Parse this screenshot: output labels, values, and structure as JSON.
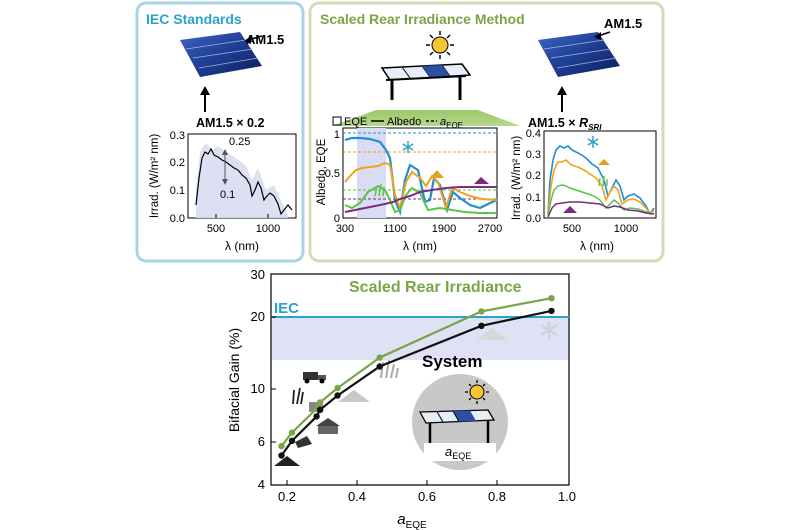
{
  "colors": {
    "iec_blue": "#2aa3c8",
    "sri_green": "#7aa546",
    "panel_iec_border": "#a9d3e2",
    "panel_sri_border": "#d4dbb8",
    "band_lavender": "#d9dcf2",
    "system_black": "#111111",
    "eqe_blue": "#1f8fd0",
    "albedo_orange": "#f0a21d",
    "albedo_green": "#5cc24a",
    "albedo_purple": "#7b2a7e"
  },
  "icons": [
    "solar-cell-icon",
    "sun-icon",
    "bifacial-array-icon",
    "snowflake-icon",
    "sand-pile-icon",
    "purple-soil-icon",
    "grass-icon",
    "truck-icon",
    "concrete-icon",
    "gravel-icon",
    "roof-icon",
    "dark-soil-icon"
  ],
  "panel_iec": {
    "title": "IEC Standards",
    "front_label": "AM1.5",
    "rear_label": "AM1.5 × 0.2",
    "ylabel": "Irrad. (W/m² nm)",
    "xlabel": "λ (nm)",
    "x_ticks": [
      "500",
      "1000"
    ],
    "y_ticks": [
      "0.0",
      "0.1",
      "0.2",
      "0.3"
    ],
    "annot_high": "0.25",
    "annot_low": "0.1"
  },
  "panel_sri": {
    "title": "Scaled Rear Irradiance Method",
    "legend_eqe": "EQE",
    "legend_albedo": "Albedo",
    "legend_a": "a",
    "legend_a_sub": "EQE",
    "ylabel": "Albedo, EQE",
    "xlabel": "λ (nm)",
    "x_ticks": [
      "300",
      "1100",
      "1900",
      "2700"
    ],
    "y_ticks": [
      "0",
      "0.5",
      "1"
    ]
  },
  "panel_rsri": {
    "front_label": "AM1.5",
    "rear_label_prefix": "AM1.5 × ",
    "rear_label_r": "R",
    "rear_label_sub": "SRI",
    "ylabel": "Irrad. (W/m² nm)",
    "xlabel": "λ (nm)",
    "x_ticks": [
      "500",
      "1000"
    ],
    "y_ticks": [
      "0.0",
      "0.1",
      "0.2",
      "0.3",
      "0.4"
    ]
  },
  "main_chart": {
    "ylabel": "Bifacial Gain (%)",
    "xlabel": "a",
    "xlabel_sub": "EQE",
    "iec_label": "IEC",
    "sri_label": "Scaled Rear Irradiance",
    "system_label": "System",
    "system_inset_label": "a",
    "system_inset_sub": "EQE",
    "x_ticks": [
      "0.2",
      "0.4",
      "0.6",
      "0.8",
      "1.0"
    ],
    "y_ticks": [
      "4",
      "6",
      "10",
      "20",
      "30"
    ]
  },
  "chart_data": {
    "type": "line",
    "xlabel": "aEQE",
    "ylabel": "Bifacial Gain (%)",
    "xlim": [
      0.15,
      1.0
    ],
    "ylim": [
      4,
      30
    ],
    "yscale": "log",
    "grid": false,
    "iec_line": 19.8,
    "iec_band": [
      13.2,
      19.8
    ],
    "series": [
      {
        "name": "Scaled Rear Irradiance",
        "color": "#7aa546",
        "x": [
          0.18,
          0.21,
          0.28,
          0.29,
          0.34,
          0.46,
          0.75,
          0.95
        ],
        "y": [
          5.8,
          6.6,
          8.3,
          8.8,
          10.1,
          13.5,
          21.0,
          23.8
        ]
      },
      {
        "name": "System",
        "color": "#111111",
        "x": [
          0.18,
          0.21,
          0.28,
          0.29,
          0.34,
          0.46,
          0.75,
          0.95
        ],
        "y": [
          5.3,
          6.1,
          7.7,
          8.2,
          9.4,
          12.4,
          18.3,
          21.1
        ]
      }
    ]
  }
}
